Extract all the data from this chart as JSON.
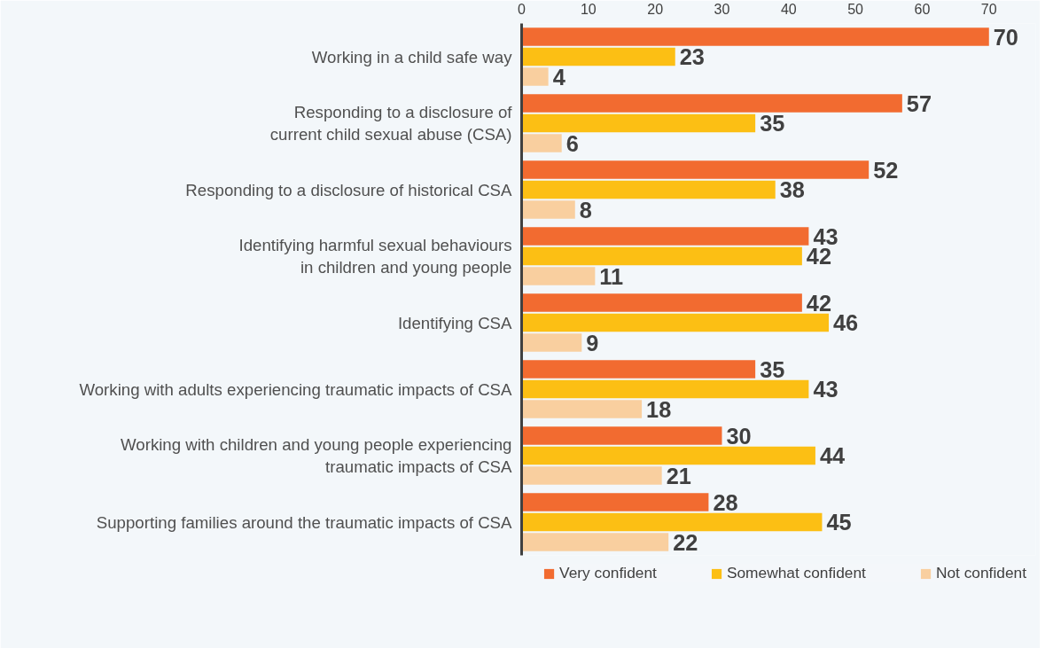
{
  "chart_data": {
    "type": "bar",
    "orientation": "horizontal",
    "categories": [
      "Working in a child safe way",
      "Responding to a disclosure of\ncurrent child sexual abuse (CSA)",
      "Responding to a disclosure of historical CSA",
      "Identifying harmful sexual behaviours\nin children and young people",
      "Identifying CSA",
      "Working with adults experiencing traumatic impacts of CSA",
      "Working with children and young people experiencing\ntraumatic impacts of CSA",
      "Supporting families around the traumatic impacts of CSA"
    ],
    "series": [
      {
        "name": "Very confident",
        "color": "#f26b30",
        "values": [
          70,
          57,
          52,
          43,
          42,
          35,
          30,
          28
        ]
      },
      {
        "name": "Somewhat confident",
        "color": "#fcbf14",
        "values": [
          23,
          35,
          38,
          42,
          46,
          43,
          44,
          45
        ]
      },
      {
        "name": "Not confident",
        "color": "#f9cf9f",
        "values": [
          4,
          6,
          8,
          11,
          9,
          18,
          21,
          22
        ]
      }
    ],
    "xlim": [
      0,
      77
    ],
    "xticks": [
      0,
      10,
      20,
      30,
      40,
      50,
      60,
      70
    ],
    "data_labels": true,
    "grid": false,
    "legend": "bottom"
  }
}
